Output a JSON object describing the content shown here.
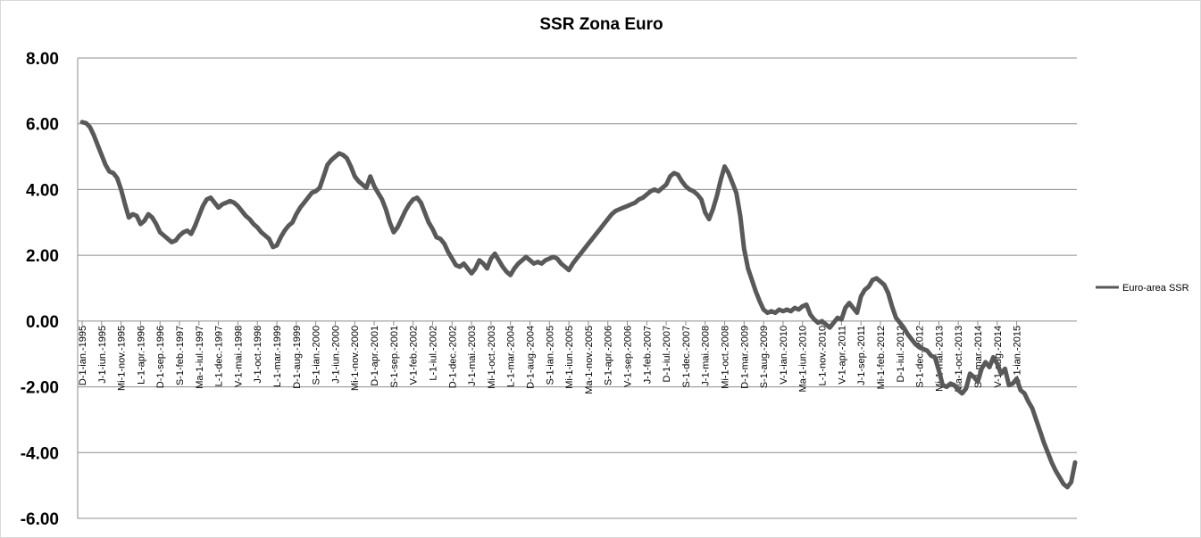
{
  "chart_data": {
    "type": "line",
    "title": "SSR Zona Euro",
    "xlabel": "",
    "ylabel": "",
    "ylim": [
      -6,
      8
    ],
    "y_ticks": [
      "8.00",
      "6.00",
      "4.00",
      "2.00",
      "0.00",
      "-2.00",
      "-4.00",
      "-6.00"
    ],
    "grid": "horizontal",
    "legend_position": "right",
    "x_tick_labels": [
      "D-1-ian.-1995",
      "J-1-iun.-1995",
      "Mi-1-nov.-1995",
      "L-1-apr.-1996",
      "D-1-sep.-1996",
      "S-1-feb.-1997",
      "Ma-1-iul.-1997",
      "L-1-dec.-1997",
      "V-1-mai.-1998",
      "J-1-oct.-1998",
      "L-1-mar.-1999",
      "D-1-aug.-1999",
      "S-1-ian.-2000",
      "J-1-iun.-2000",
      "Mi-1-nov.-2000",
      "D-1-apr.-2001",
      "S-1-sep.-2001",
      "V-1-feb.-2002",
      "L-1-iul.-2002",
      "D-1-dec.-2002",
      "J-1-mai.-2003",
      "Mi-1-oct.-2003",
      "L-1-mar.-2004",
      "D-1-aug.-2004",
      "S-1-ian.-2005",
      "Mi-1-iun.-2005",
      "Ma-1-nov.-2005",
      "S-1-apr.-2006",
      "V-1-sep.-2006",
      "J-1-feb.-2007",
      "D-1-iul.-2007",
      "S-1-dec.-2007",
      "J-1-mai.-2008",
      "Mi-1-oct.-2008",
      "D-1-mar.-2009",
      "S-1-aug.-2009",
      "V-1-ian.-2010",
      "Ma-1-iun.-2010",
      "L-1-nov.-2010",
      "V-1-apr.-2011",
      "J-1-sep.-2011",
      "Mi-1-feb.-2012",
      "D-1-iul.-2012",
      "S-1-dec.-2012",
      "Mi-1-mai.-2013",
      "Ma-1-oct.-2013",
      "S-1-mar.-2014",
      "V-1-aug.-2014",
      "J-1-ian.-2015"
    ],
    "series": [
      {
        "name": "Euro-area SSR",
        "color": "#595959",
        "x_start": "1995-01",
        "frequency": "monthly",
        "values": [
          6.05,
          6.02,
          5.9,
          5.65,
          5.35,
          5.05,
          4.75,
          4.55,
          4.5,
          4.35,
          4.0,
          3.55,
          3.15,
          3.25,
          3.2,
          2.95,
          3.05,
          3.25,
          3.15,
          2.95,
          2.7,
          2.6,
          2.5,
          2.4,
          2.45,
          2.6,
          2.7,
          2.75,
          2.65,
          2.9,
          3.2,
          3.5,
          3.7,
          3.75,
          3.6,
          3.45,
          3.55,
          3.6,
          3.65,
          3.6,
          3.5,
          3.35,
          3.2,
          3.1,
          2.95,
          2.85,
          2.7,
          2.6,
          2.5,
          2.25,
          2.3,
          2.55,
          2.75,
          2.9,
          3.0,
          3.25,
          3.45,
          3.6,
          3.75,
          3.9,
          3.95,
          4.05,
          4.4,
          4.75,
          4.9,
          5.0,
          5.1,
          5.05,
          4.95,
          4.7,
          4.4,
          4.25,
          4.15,
          4.05,
          4.4,
          4.1,
          3.9,
          3.7,
          3.4,
          3.0,
          2.7,
          2.85,
          3.1,
          3.35,
          3.55,
          3.7,
          3.75,
          3.6,
          3.3,
          3.0,
          2.8,
          2.55,
          2.5,
          2.35,
          2.1,
          1.9,
          1.7,
          1.65,
          1.75,
          1.6,
          1.45,
          1.6,
          1.85,
          1.75,
          1.6,
          1.9,
          2.05,
          1.85,
          1.65,
          1.5,
          1.4,
          1.6,
          1.75,
          1.85,
          1.95,
          1.85,
          1.75,
          1.8,
          1.75,
          1.85,
          1.9,
          1.95,
          1.9,
          1.75,
          1.65,
          1.55,
          1.75,
          1.9,
          2.05,
          2.2,
          2.35,
          2.5,
          2.65,
          2.8,
          2.95,
          3.1,
          3.25,
          3.35,
          3.4,
          3.45,
          3.5,
          3.55,
          3.6,
          3.7,
          3.75,
          3.85,
          3.95,
          4.0,
          3.95,
          4.05,
          4.15,
          4.4,
          4.5,
          4.45,
          4.25,
          4.1,
          4.0,
          3.95,
          3.85,
          3.7,
          3.3,
          3.1,
          3.4,
          3.8,
          4.3,
          4.7,
          4.5,
          4.2,
          3.9,
          3.2,
          2.2,
          1.6,
          1.25,
          0.9,
          0.6,
          0.35,
          0.25,
          0.3,
          0.25,
          0.35,
          0.3,
          0.35,
          0.3,
          0.4,
          0.35,
          0.45,
          0.5,
          0.2,
          0.05,
          -0.05,
          0.0,
          -0.1,
          -0.2,
          -0.05,
          0.1,
          0.05,
          0.4,
          0.55,
          0.4,
          0.25,
          0.75,
          0.95,
          1.05,
          1.25,
          1.3,
          1.2,
          1.1,
          0.85,
          0.45,
          0.1,
          -0.05,
          -0.2,
          -0.4,
          -0.55,
          -0.7,
          -0.8,
          -0.85,
          -0.9,
          -1.05,
          -1.1,
          -1.5,
          -1.95,
          -2.0,
          -1.9,
          -1.95,
          -2.1,
          -2.2,
          -2.05,
          -1.6,
          -1.7,
          -1.85,
          -1.45,
          -1.25,
          -1.4,
          -1.1,
          -1.3,
          -1.6,
          -1.45,
          -1.95,
          -1.9,
          -1.75,
          -2.1,
          -2.2,
          -2.45,
          -2.65,
          -3.0,
          -3.35,
          -3.7,
          -4.0,
          -4.3,
          -4.55,
          -4.75,
          -4.95,
          -5.05,
          -4.9,
          -4.3
        ]
      }
    ]
  }
}
